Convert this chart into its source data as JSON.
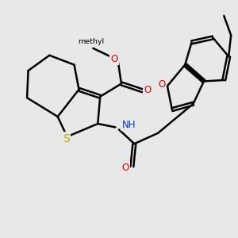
{
  "background_color": "#e8e8e8",
  "bond_color": "#000000",
  "line_width": 1.8,
  "font_size": 8.5,
  "S_color": "#ccaa00",
  "O_color": "#dd0000",
  "N_color": "#0033cc",
  "figsize": [
    3.0,
    3.0
  ],
  "dpi": 100,
  "xlim": [
    0,
    10
  ],
  "ylim": [
    0,
    10
  ]
}
